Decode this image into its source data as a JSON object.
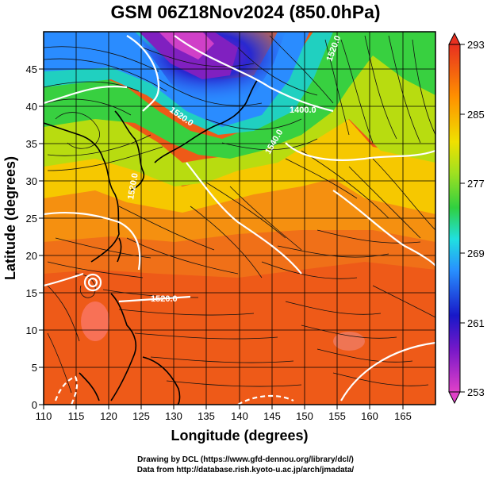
{
  "title": "GSM 06Z18Nov2024 (850.0hPa)",
  "xlabel": "Longitude (degrees)",
  "ylabel": "Latitude (degrees)",
  "x_ticks": [
    "110",
    "115",
    "120",
    "125",
    "130",
    "135",
    "140",
    "145",
    "150",
    "155",
    "160",
    "165"
  ],
  "y_ticks": [
    "0",
    "5",
    "10",
    "15",
    "20",
    "25",
    "30",
    "35",
    "40",
    "45"
  ],
  "colorbar_ticks": [
    "253",
    "261",
    "269",
    "277",
    "285",
    "293"
  ],
  "contour_labels": [
    "1400.0",
    "1520.0",
    "1520.0",
    "1540.0",
    "1520.0",
    "1520.0"
  ],
  "credits": {
    "line1": "Drawing by DCL (https://www.gfd-dennou.org/library/dcl/)",
    "line2": "Data from http://database.rish.kyoto-u.ac.jp/arch/jmadata/"
  },
  "chart_data": {
    "type": "heatmap",
    "variable": "temperature (K) with geopotential height contours and wind streamlines",
    "xlim": [
      110,
      170
    ],
    "ylim": [
      0,
      50
    ],
    "colorbar_range": [
      253,
      293
    ],
    "colors": {
      "min": "#e040c0",
      "low": "#2020c0",
      "mid_low": "#20c0ff",
      "mid": "#40d040",
      "mid_high": "#f0e000",
      "high": "#ff8000",
      "max": "#e83020"
    },
    "grid": true
  }
}
